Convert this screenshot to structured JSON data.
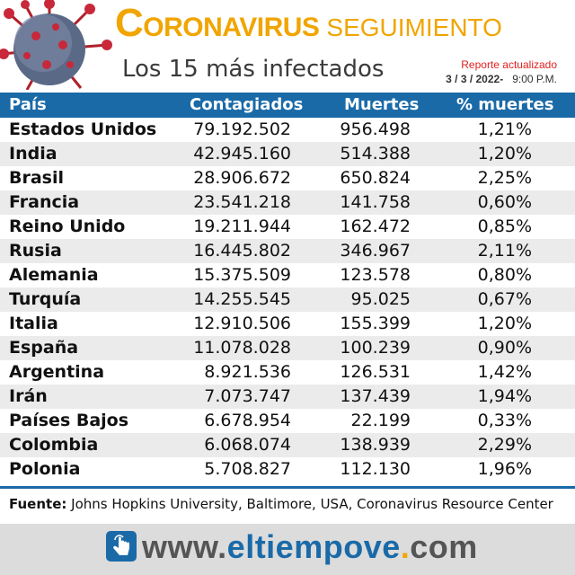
{
  "header": {
    "title_first_letter": "C",
    "title_rest": "ORONAVIRUS",
    "title_suffix": "SEGUIMIENTO",
    "subtitle": "Los 15 más infectados",
    "report_label": "Reporte actualizado",
    "report_date": "3 / 3 / 2022-",
    "report_time": "9:00 P.M."
  },
  "columns": {
    "pais": "País",
    "contagiados": "Contagiados",
    "muertes": "Muertes",
    "pct_muertes": "% muertes"
  },
  "rows": [
    {
      "pais": "Estados Unidos",
      "contagiados": "79.192.502",
      "muertes": "956.498",
      "pct": "1,21%"
    },
    {
      "pais": "India",
      "contagiados": "42.945.160",
      "muertes": "514.388",
      "pct": "1,20%"
    },
    {
      "pais": "Brasil",
      "contagiados": "28.906.672",
      "muertes": "650.824",
      "pct": "2,25%"
    },
    {
      "pais": "Francia",
      "contagiados": "23.541.218",
      "muertes": "141.758",
      "pct": "0,60%"
    },
    {
      "pais": "Reino Unido",
      "contagiados": "19.211.944",
      "muertes": "162.472",
      "pct": "0,85%"
    },
    {
      "pais": "Rusia",
      "contagiados": "16.445.802",
      "muertes": "346.967",
      "pct": "2,11%"
    },
    {
      "pais": "Alemania",
      "contagiados": "15.375.509",
      "muertes": "123.578",
      "pct": "0,80%"
    },
    {
      "pais": "Turquía",
      "contagiados": "14.255.545",
      "muertes": "95.025",
      "pct": "0,67%"
    },
    {
      "pais": "Italia",
      "contagiados": "12.910.506",
      "muertes": "155.399",
      "pct": "1,20%"
    },
    {
      "pais": "España",
      "contagiados": "11.078.028",
      "muertes": "100.239",
      "pct": "0,90%"
    },
    {
      "pais": "Argentina",
      "contagiados": "8.921.536",
      "muertes": "126.531",
      "pct": "1,42%"
    },
    {
      "pais": "Irán",
      "contagiados": "7.073.747",
      "muertes": "137.439",
      "pct": "1,94%"
    },
    {
      "pais": "Países Bajos",
      "contagiados": "6.678.954",
      "muertes": "22.199",
      "pct": "0,33%"
    },
    {
      "pais": "Colombia",
      "contagiados": "6.068.074",
      "muertes": "138.939",
      "pct": "2,29%"
    },
    {
      "pais": "Polonia",
      "contagiados": "5.708.827",
      "muertes": "112.130",
      "pct": "1,96%"
    }
  ],
  "source": {
    "label": "Fuente:",
    "text": "Johns Hopkins University, Baltimore, USA, Coronavirus Resource Center"
  },
  "footer": {
    "www": "www.",
    "brand": "eltiempove",
    "dot": ".",
    "tld": "com",
    "icon": "pointer-hand-icon"
  },
  "colors": {
    "accent": "#f0a500",
    "header_bg": "#1a6aa8",
    "report_red": "#e02020"
  }
}
